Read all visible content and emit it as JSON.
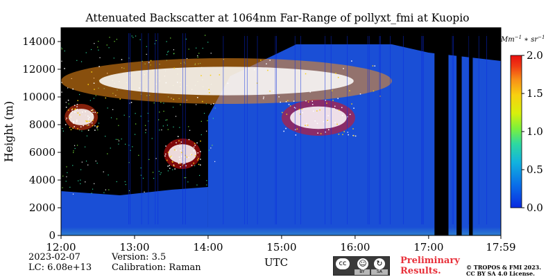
{
  "chart_data": {
    "type": "heatmap",
    "title": "Attenuated Backscatter at 1064nm Far-Range of pollyxt_fmi at Kuopio",
    "xlabel": "UTC",
    "ylabel": "Height (m)",
    "x_ticks": [
      "12:00",
      "13:00",
      "14:00",
      "15:00",
      "16:00",
      "17:00",
      "17:59"
    ],
    "x_tick_hours": [
      12.0,
      13.0,
      14.0,
      15.0,
      16.0,
      17.0,
      17.983
    ],
    "xlim_hours": [
      12.0,
      17.983
    ],
    "y_ticks": [
      0,
      2000,
      4000,
      6000,
      8000,
      10000,
      12000,
      14000
    ],
    "ylim": [
      0,
      15000
    ],
    "colorbar": {
      "unit_label": "Mm^-1*sr^-1",
      "ticks": [
        0.0,
        0.5,
        1.0,
        1.5,
        2.0
      ],
      "range": [
        0.0,
        2.0
      ],
      "colors": [
        "#0a2be0",
        "#0a6fe8",
        "#12b3de",
        "#2ed9a0",
        "#7cf03c",
        "#d8f00c",
        "#f8d010",
        "#f89018",
        "#f03a14",
        "#e81010"
      ]
    },
    "background_color": "#000000",
    "clear_air_color": "#1a4fd6",
    "features": [
      {
        "name": "boundary layer",
        "x_hours": [
          12.0,
          17.983
        ],
        "height_range_m": [
          0,
          600
        ],
        "level": 0.25
      },
      {
        "name": "high cirrus layer",
        "x_hours": [
          12.0,
          16.5
        ],
        "height_range_m": [
          9500,
          12800
        ],
        "level": 1.6
      },
      {
        "name": "mid-level cloud",
        "x_hours": [
          13.4,
          13.9
        ],
        "height_range_m": [
          4800,
          7000
        ],
        "level": 2.0
      },
      {
        "name": "cloud band",
        "x_hours": [
          15.0,
          16.0
        ],
        "height_range_m": [
          7200,
          9800
        ],
        "level": 2.0
      },
      {
        "name": "cloud",
        "x_hours": [
          12.05,
          12.5
        ],
        "height_range_m": [
          7600,
          9500
        ],
        "level": 1.8
      }
    ],
    "blocked_columns_hours": [
      [
        17.08,
        17.27
      ],
      [
        17.38,
        17.45
      ],
      [
        17.55,
        17.6
      ]
    ]
  },
  "footer": {
    "date": "2023-02-07",
    "lc": "LC: 6.08e+13",
    "version": "Version: 3.5",
    "calibration": "Calibration: Raman",
    "prelim_line1": "Preliminary",
    "prelim_line2": "Results.",
    "copyright_line1": "© TROPOS & FMI 2023.",
    "copyright_line2": "CC BY SA 4.0 License.",
    "cc_labels": [
      "BY",
      "SA"
    ]
  }
}
